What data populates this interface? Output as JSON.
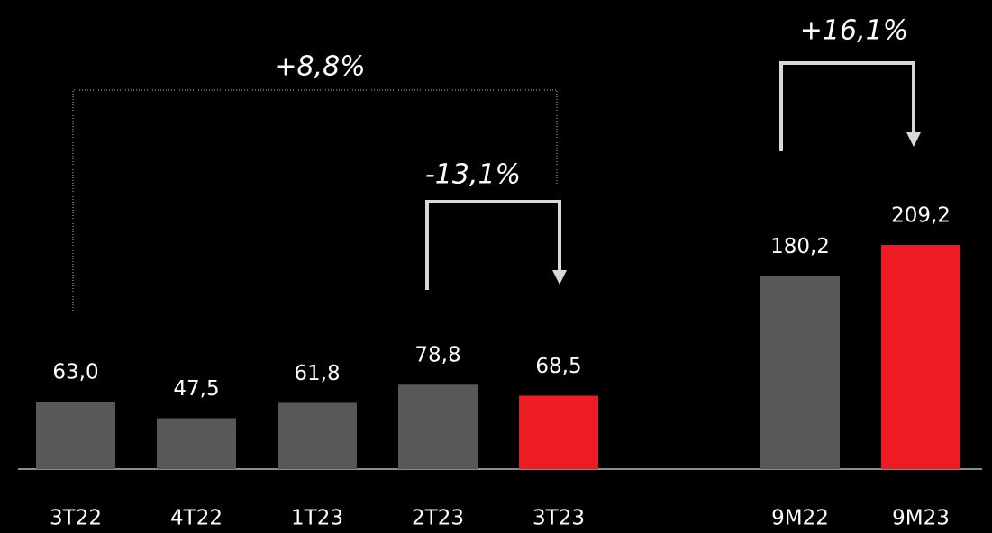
{
  "chart_data": {
    "type": "bar",
    "categories": [
      "3T22",
      "4T22",
      "1T23",
      "2T23",
      "3T23",
      "9M22",
      "9M23"
    ],
    "values": [
      63.0,
      47.5,
      61.8,
      78.8,
      68.5,
      180.2,
      209.2
    ],
    "value_labels": [
      "63,0",
      "47,5",
      "61,8",
      "78,8",
      "68,5",
      "180,2",
      "209,2"
    ],
    "colors": [
      "#58585a",
      "#58585a",
      "#58585a",
      "#58585a",
      "#ed1c24",
      "#58585a",
      "#ed1c24"
    ],
    "annotations": [
      "+8,8%",
      "-13,1%",
      "+16,1%"
    ]
  }
}
